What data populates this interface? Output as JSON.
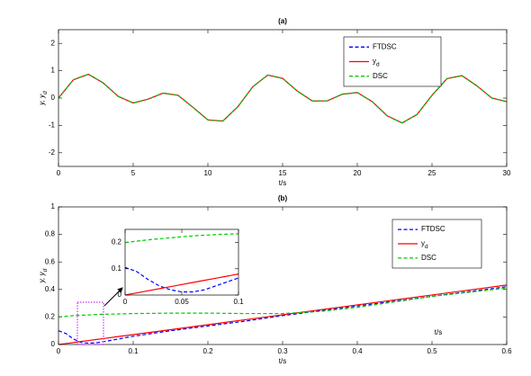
{
  "chart_data": [
    {
      "type": "line",
      "title": "(a)",
      "xlabel": "t/s",
      "ylabel": "y, y_d",
      "x": [
        0,
        1,
        2,
        3,
        4,
        5,
        6,
        7,
        8,
        9,
        10,
        11,
        12,
        13,
        14,
        15,
        16,
        17,
        18,
        19,
        20,
        21,
        22,
        23,
        24,
        25,
        26,
        27,
        28,
        29,
        30
      ],
      "series": [
        {
          "name": "FTDSC",
          "color": "#0000ff",
          "line_style": "dashed",
          "values": [
            0,
            0.67,
            0.87,
            0.55,
            0.06,
            -0.18,
            -0.04,
            0.18,
            0.1,
            -0.34,
            -0.8,
            -0.84,
            -0.32,
            0.41,
            0.84,
            0.72,
            0.25,
            -0.11,
            -0.1,
            0.14,
            0.2,
            -0.13,
            -0.65,
            -0.91,
            -0.6,
            0.1,
            0.71,
            0.82,
            0.45,
            0.0,
            -0.13
          ]
        },
        {
          "name": "y_d",
          "color": "#ff0000",
          "line_style": "solid",
          "values": [
            0,
            0.67,
            0.87,
            0.55,
            0.06,
            -0.18,
            -0.04,
            0.18,
            0.1,
            -0.34,
            -0.8,
            -0.84,
            -0.32,
            0.41,
            0.84,
            0.72,
            0.25,
            -0.11,
            -0.1,
            0.14,
            0.2,
            -0.13,
            -0.65,
            -0.91,
            -0.6,
            0.1,
            0.71,
            0.82,
            0.45,
            0.0,
            -0.13
          ]
        },
        {
          "name": "DSC",
          "color": "#00cc00",
          "line_style": "dashed",
          "values": [
            0,
            0.67,
            0.87,
            0.55,
            0.06,
            -0.18,
            -0.04,
            0.18,
            0.1,
            -0.34,
            -0.8,
            -0.84,
            -0.32,
            0.41,
            0.84,
            0.72,
            0.25,
            -0.11,
            -0.1,
            0.14,
            0.2,
            -0.13,
            -0.65,
            -0.91,
            -0.6,
            0.1,
            0.71,
            0.82,
            0.45,
            0.0,
            -0.13
          ]
        }
      ],
      "xlim": [
        0,
        30
      ],
      "xticks": [
        0,
        5,
        10,
        15,
        20,
        25,
        30
      ],
      "ylim": [
        -2.5,
        2.5
      ],
      "yticks": [
        -2,
        -1,
        0,
        1,
        2
      ],
      "grid": false,
      "legend": "upper right"
    },
    {
      "type": "line",
      "title": "(b)",
      "xlabel": "t/s",
      "ylabel": "y, y_d",
      "annotation": "t/s",
      "x": [
        0,
        0.01,
        0.02,
        0.03,
        0.04,
        0.05,
        0.06,
        0.08,
        0.1,
        0.15,
        0.2,
        0.25,
        0.3,
        0.35,
        0.4,
        0.45,
        0.5,
        0.55,
        0.6
      ],
      "series": [
        {
          "name": "FTDSC",
          "color": "#0000ff",
          "line_style": "dashed",
          "values": [
            0.1,
            0.08,
            0.04,
            0.015,
            0.01,
            0.012,
            0.02,
            0.04,
            0.06,
            0.1,
            0.135,
            0.17,
            0.21,
            0.245,
            0.28,
            0.315,
            0.35,
            0.385,
            0.42
          ]
        },
        {
          "name": "y_d",
          "color": "#ff0000",
          "line_style": "solid",
          "values": [
            0,
            0.007,
            0.014,
            0.022,
            0.029,
            0.036,
            0.043,
            0.058,
            0.072,
            0.108,
            0.144,
            0.18,
            0.216,
            0.252,
            0.288,
            0.324,
            0.36,
            0.396,
            0.432
          ]
        },
        {
          "name": "DSC",
          "color": "#00cc00",
          "line_style": "dashed",
          "values": [
            0.2,
            0.205,
            0.21,
            0.213,
            0.215,
            0.218,
            0.22,
            0.222,
            0.225,
            0.228,
            0.228,
            0.225,
            0.225,
            0.24,
            0.27,
            0.31,
            0.35,
            0.38,
            0.41
          ]
        }
      ],
      "xlim": [
        0,
        0.6
      ],
      "xticks": [
        0,
        0.1,
        0.2,
        0.3,
        0.4,
        0.5,
        0.6
      ],
      "ylim": [
        0,
        1
      ],
      "yticks": [
        0,
        0.2,
        0.4,
        0.6,
        0.8,
        1
      ],
      "grid": false,
      "legend": "upper right"
    },
    {
      "type": "line",
      "x": [
        0,
        0.01,
        0.02,
        0.03,
        0.04,
        0.05,
        0.06,
        0.07,
        0.08,
        0.09,
        0.1
      ],
      "series": [
        {
          "color": "#0000ff",
          "line_style": "dashed",
          "values": [
            0.105,
            0.09,
            0.06,
            0.035,
            0.02,
            0.012,
            0.012,
            0.02,
            0.035,
            0.05,
            0.065
          ]
        },
        {
          "color": "#ff0000",
          "line_style": "solid",
          "values": [
            0,
            0.008,
            0.016,
            0.024,
            0.032,
            0.04,
            0.048,
            0.056,
            0.064,
            0.072,
            0.08
          ]
        },
        {
          "color": "#00cc00",
          "line_style": "dashed",
          "values": [
            0.2,
            0.205,
            0.21,
            0.214,
            0.218,
            0.222,
            0.225,
            0.228,
            0.23,
            0.232,
            0.233
          ]
        }
      ],
      "xlim": [
        0,
        0.1
      ],
      "xticks": [
        0,
        0.05,
        0.1
      ],
      "ylim": [
        0,
        0.25
      ],
      "yticks": [
        0,
        0.1,
        0.2
      ],
      "grid": false
    }
  ]
}
